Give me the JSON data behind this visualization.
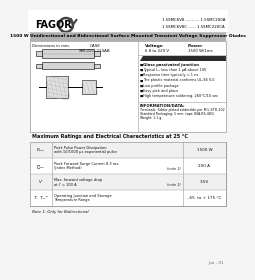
{
  "page_bg": "#f5f5f5",
  "content_bg": "#ffffff",
  "header_logo": "FAGOR",
  "part_numbers_right": [
    "1.5SMC6V8 ........... 1.5SMC200A",
    "1.5SMC6V8C ...... 1.5SMC220CA"
  ],
  "title_bar_text": "1500 W Unidirectional and Bidirectional Surface Mounted Transient Voltage Suppressor Diodes",
  "title_bar_bg": "#b0b0b0",
  "case_label": "CASE\nSMC/DO-214AB",
  "dim_label": "Dimensions in mm.",
  "voltage_label": "Voltage",
  "voltage_value": "6.8 to 220 V",
  "power_label": "Power",
  "power_value": "1500 W/1ms",
  "features": [
    "Glass passivated junction",
    "Typical I₂ₙ less than 1 μA above 10V",
    "Response time typically < 1 ns",
    "The plastic material conforms UL-94 V-0",
    "Low profile package",
    "Easy pick and place",
    "High temperature soldering: 260°C/10 sec"
  ],
  "info_title": "INFORMATION/DATA:",
  "info_lines": [
    "Terminals: Solder plated solderable per MIL-STD-202",
    "Standard Packaging: 5 mm. tape (EIA-RS-481)",
    "Weight: 1.1 g."
  ],
  "table_title": "Maximum Ratings and Electrical Characteristics at 25 °C",
  "table_rows": [
    {
      "sym": "Pₚₚₖ",
      "desc1": "Peak Pulse Power Dissipation",
      "desc2": "with 10/1000 μs exponential pulse",
      "note": "",
      "val": "1500 W"
    },
    {
      "sym": "I₟ₚₚ",
      "desc1": "Peak Forward Surge Current 8.3 ms.",
      "desc2": "(Jedec Method)",
      "note": "(note 1)",
      "val": "200 A"
    },
    {
      "sym": "Vⁱ",
      "desc1": "Max. forward voltage drop",
      "desc2": "at Iⁱ = 100 A",
      "note": "(note 1)",
      "val": "3.5V"
    },
    {
      "sym": "Tⱼ  Tₛₜᴳ",
      "desc1": "Operating Junction and Storage",
      "desc2": "Temperature Range",
      "note": "",
      "val": "-65  to + 175 °C"
    }
  ],
  "footnote": "Note 1: Only for Bidirectional",
  "footer": "Jun - 01",
  "logo_color": "#444444",
  "border_color": "#999999",
  "text_color": "#111111"
}
